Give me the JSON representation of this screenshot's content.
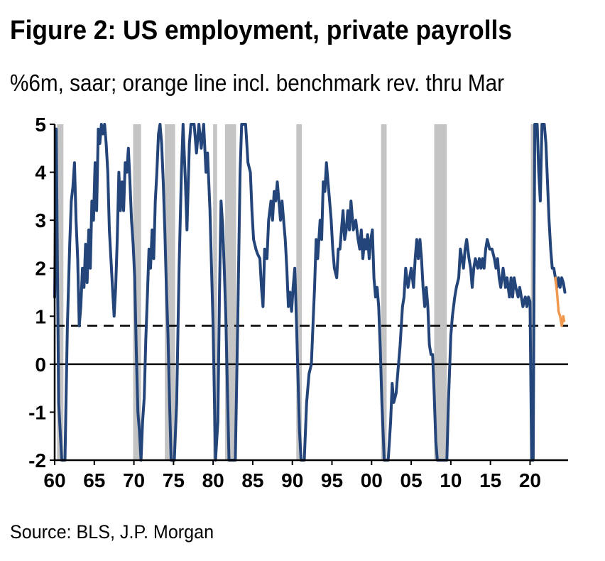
{
  "title": "Figure 2: US employment, private payrolls",
  "subtitle": "%6m, saar; orange line incl. benchmark rev. thru Mar",
  "source": "Source: BLS, J.P. Morgan",
  "colors": {
    "main_line": "#23457a",
    "revised_line": "#f0994e",
    "recession": "#c4c4c4",
    "axis": "#000000"
  },
  "chart_data": {
    "type": "line",
    "title": "Figure 2: US employment, private payrolls",
    "subtitle": "%6m, saar; orange line incl. benchmark rev. thru Mar",
    "xlabel": "",
    "ylabel": "",
    "xlim": [
      1960,
      2024.8
    ],
    "ylim": [
      -2,
      5
    ],
    "x_ticks": [
      1960,
      1965,
      1970,
      1975,
      1980,
      1985,
      1990,
      1995,
      2000,
      2005,
      2010,
      2015,
      2020
    ],
    "x_tick_labels": [
      "60",
      "65",
      "70",
      "75",
      "80",
      "85",
      "90",
      "95",
      "00",
      "05",
      "10",
      "15",
      "20"
    ],
    "y_ticks": [
      -2,
      -1,
      0,
      1,
      2,
      3,
      4,
      5
    ],
    "y_tick_labels": [
      "-2",
      "-1",
      "0",
      "1",
      "2",
      "3",
      "4",
      "5"
    ],
    "grid": false,
    "recessions": [
      [
        1960.3,
        1961.1
      ],
      [
        1969.9,
        1970.9
      ],
      [
        1973.9,
        1975.2
      ],
      [
        1980.0,
        1980.5
      ],
      [
        1981.5,
        1982.9
      ],
      [
        1990.5,
        1991.2
      ],
      [
        2001.2,
        2001.9
      ],
      [
        2007.9,
        2009.5
      ],
      [
        2020.1,
        2020.4
      ]
    ],
    "reference_line": {
      "y": 0.8,
      "style": "dashed"
    },
    "zero_line": {
      "y": 0
    },
    "series": [
      {
        "style": "solid",
        "color": "#23457a",
        "points": [
          [
            1960.0,
            1.4
          ],
          [
            1960.2,
            4.9
          ],
          [
            1960.5,
            -0.8
          ],
          [
            1960.9,
            -2.0
          ],
          [
            1961.3,
            -2.0
          ],
          [
            1961.6,
            0.8
          ],
          [
            1961.9,
            2.5
          ],
          [
            1962.1,
            3.4
          ],
          [
            1962.3,
            3.7
          ],
          [
            1962.5,
            4.2
          ],
          [
            1962.7,
            3.0
          ],
          [
            1962.9,
            2.2
          ],
          [
            1963.1,
            0.8
          ],
          [
            1963.3,
            1.2
          ],
          [
            1963.5,
            2.0
          ],
          [
            1963.7,
            1.6
          ],
          [
            1963.9,
            2.5
          ],
          [
            1964.1,
            1.7
          ],
          [
            1964.3,
            2.8
          ],
          [
            1964.5,
            2.0
          ],
          [
            1964.7,
            3.4
          ],
          [
            1964.9,
            3.0
          ],
          [
            1965.1,
            4.2
          ],
          [
            1965.3,
            3.2
          ],
          [
            1965.5,
            4.9
          ],
          [
            1965.7,
            4.6
          ],
          [
            1965.9,
            5.0
          ],
          [
            1966.1,
            4.8
          ],
          [
            1966.3,
            5.0
          ],
          [
            1966.5,
            4.6
          ],
          [
            1966.7,
            4.0
          ],
          [
            1966.9,
            2.8
          ],
          [
            1967.1,
            2.2
          ],
          [
            1967.3,
            1.6
          ],
          [
            1967.5,
            1.0
          ],
          [
            1967.7,
            1.6
          ],
          [
            1967.9,
            2.6
          ],
          [
            1968.1,
            4.0
          ],
          [
            1968.3,
            3.2
          ],
          [
            1968.5,
            3.8
          ],
          [
            1968.7,
            3.2
          ],
          [
            1968.9,
            4.2
          ],
          [
            1969.1,
            4.0
          ],
          [
            1969.3,
            4.5
          ],
          [
            1969.5,
            3.8
          ],
          [
            1969.7,
            3.0
          ],
          [
            1969.9,
            2.5
          ],
          [
            1970.1,
            1.8
          ],
          [
            1970.3,
            0.3
          ],
          [
            1970.5,
            -1.0
          ],
          [
            1970.7,
            -1.4
          ],
          [
            1970.9,
            -2.0
          ],
          [
            1971.1,
            -1.2
          ],
          [
            1971.3,
            -0.7
          ],
          [
            1971.5,
            0.5
          ],
          [
            1971.7,
            1.4
          ],
          [
            1971.9,
            2.4
          ],
          [
            1972.1,
            2.0
          ],
          [
            1972.3,
            2.8
          ],
          [
            1972.5,
            2.2
          ],
          [
            1972.7,
            3.4
          ],
          [
            1972.9,
            4.0
          ],
          [
            1973.1,
            4.8
          ],
          [
            1973.3,
            5.0
          ],
          [
            1973.5,
            4.6
          ],
          [
            1973.7,
            3.8
          ],
          [
            1973.9,
            2.8
          ],
          [
            1974.1,
            1.6
          ],
          [
            1974.3,
            0.6
          ],
          [
            1974.5,
            -0.8
          ],
          [
            1974.7,
            -2.0
          ],
          [
            1975.1,
            -2.0
          ],
          [
            1975.4,
            -0.8
          ],
          [
            1975.7,
            2.0
          ],
          [
            1976.0,
            4.0
          ],
          [
            1976.2,
            5.0
          ],
          [
            1976.5,
            3.8
          ],
          [
            1976.7,
            2.8
          ],
          [
            1977.0,
            4.6
          ],
          [
            1977.2,
            5.0
          ],
          [
            1977.6,
            5.0
          ],
          [
            1977.9,
            4.4
          ],
          [
            1978.2,
            5.0
          ],
          [
            1978.5,
            4.5
          ],
          [
            1978.8,
            5.0
          ],
          [
            1979.1,
            4.0
          ],
          [
            1979.3,
            4.4
          ],
          [
            1979.6,
            3.2
          ],
          [
            1979.8,
            2.0
          ],
          [
            1980.0,
            0.8
          ],
          [
            1980.3,
            -2.0
          ],
          [
            1980.6,
            -1.2
          ],
          [
            1980.8,
            1.5
          ],
          [
            1981.0,
            3.4
          ],
          [
            1981.2,
            2.9
          ],
          [
            1981.4,
            2.0
          ],
          [
            1981.6,
            1.0
          ],
          [
            1981.8,
            -0.5
          ],
          [
            1982.0,
            -2.0
          ],
          [
            1982.8,
            -2.0
          ],
          [
            1983.1,
            0.8
          ],
          [
            1983.4,
            4.0
          ],
          [
            1983.6,
            5.0
          ],
          [
            1984.1,
            5.0
          ],
          [
            1984.4,
            4.2
          ],
          [
            1984.7,
            4.0
          ],
          [
            1984.9,
            3.2
          ],
          [
            1985.1,
            2.6
          ],
          [
            1985.4,
            2.4
          ],
          [
            1985.6,
            2.3
          ],
          [
            1985.9,
            2.2
          ],
          [
            1986.1,
            1.6
          ],
          [
            1986.3,
            1.2
          ],
          [
            1986.5,
            2.4
          ],
          [
            1986.8,
            2.2
          ],
          [
            1987.0,
            3.0
          ],
          [
            1987.3,
            3.4
          ],
          [
            1987.5,
            3.0
          ],
          [
            1987.7,
            3.6
          ],
          [
            1987.9,
            3.4
          ],
          [
            1988.1,
            3.8
          ],
          [
            1988.3,
            3.4
          ],
          [
            1988.5,
            3.0
          ],
          [
            1988.7,
            3.4
          ],
          [
            1988.9,
            3.0
          ],
          [
            1989.1,
            2.6
          ],
          [
            1989.3,
            2.0
          ],
          [
            1989.5,
            1.2
          ],
          [
            1989.7,
            1.5
          ],
          [
            1989.9,
            1.1
          ],
          [
            1990.1,
            1.6
          ],
          [
            1990.3,
            2.0
          ],
          [
            1990.5,
            1.0
          ],
          [
            1990.7,
            -0.2
          ],
          [
            1990.9,
            -1.4
          ],
          [
            1991.1,
            -2.0
          ],
          [
            1991.5,
            -2.0
          ],
          [
            1991.8,
            -0.8
          ],
          [
            1992.1,
            -0.2
          ],
          [
            1992.4,
            0.0
          ],
          [
            1992.6,
            0.8
          ],
          [
            1992.8,
            1.6
          ],
          [
            1993.0,
            2.6
          ],
          [
            1993.2,
            2.2
          ],
          [
            1993.5,
            3.0
          ],
          [
            1993.7,
            2.6
          ],
          [
            1993.9,
            3.8
          ],
          [
            1994.1,
            3.6
          ],
          [
            1994.3,
            4.2
          ],
          [
            1994.5,
            3.8
          ],
          [
            1994.7,
            3.4
          ],
          [
            1994.9,
            3.0
          ],
          [
            1995.1,
            2.4
          ],
          [
            1995.3,
            2.0
          ],
          [
            1995.6,
            1.8
          ],
          [
            1995.8,
            2.4
          ],
          [
            1996.0,
            2.4
          ],
          [
            1996.2,
            2.8
          ],
          [
            1996.4,
            3.2
          ],
          [
            1996.6,
            2.6
          ],
          [
            1996.8,
            2.8
          ],
          [
            1997.0,
            3.2
          ],
          [
            1997.2,
            2.8
          ],
          [
            1997.4,
            3.4
          ],
          [
            1997.7,
            2.8
          ],
          [
            1998.0,
            3.0
          ],
          [
            1998.3,
            2.6
          ],
          [
            1998.5,
            2.4
          ],
          [
            1998.7,
            2.8
          ],
          [
            1998.9,
            2.2
          ],
          [
            1999.1,
            2.6
          ],
          [
            1999.3,
            2.4
          ],
          [
            1999.5,
            2.7
          ],
          [
            1999.7,
            2.2
          ],
          [
            1999.9,
            2.6
          ],
          [
            2000.1,
            2.8
          ],
          [
            2000.3,
            1.8
          ],
          [
            2000.5,
            1.4
          ],
          [
            2000.7,
            1.6
          ],
          [
            2000.9,
            1.2
          ],
          [
            2001.1,
            0.3
          ],
          [
            2001.3,
            -0.8
          ],
          [
            2001.6,
            -2.0
          ],
          [
            2002.1,
            -2.0
          ],
          [
            2002.4,
            -1.2
          ],
          [
            2002.6,
            -0.4
          ],
          [
            2002.8,
            -0.8
          ],
          [
            2003.1,
            -0.6
          ],
          [
            2003.3,
            -0.2
          ],
          [
            2003.6,
            0.4
          ],
          [
            2003.9,
            1.2
          ],
          [
            2004.1,
            1.4
          ],
          [
            2004.3,
            2.0
          ],
          [
            2004.6,
            1.6
          ],
          [
            2004.8,
            1.8
          ],
          [
            2005.0,
            2.0
          ],
          [
            2005.3,
            1.6
          ],
          [
            2005.5,
            2.2
          ],
          [
            2005.7,
            2.6
          ],
          [
            2005.9,
            2.2
          ],
          [
            2006.1,
            2.6
          ],
          [
            2006.3,
            2.2
          ],
          [
            2006.5,
            1.6
          ],
          [
            2006.7,
            1.2
          ],
          [
            2006.9,
            1.6
          ],
          [
            2007.1,
            1.2
          ],
          [
            2007.3,
            0.4
          ],
          [
            2007.5,
            0.2
          ],
          [
            2007.7,
            0.2
          ],
          [
            2007.9,
            -0.6
          ],
          [
            2008.1,
            -1.6
          ],
          [
            2008.3,
            -2.0
          ],
          [
            2009.5,
            -2.0
          ],
          [
            2009.7,
            -0.8
          ],
          [
            2010.0,
            0.6
          ],
          [
            2010.2,
            1.0
          ],
          [
            2010.5,
            1.4
          ],
          [
            2010.7,
            1.6
          ],
          [
            2011.0,
            1.8
          ],
          [
            2011.2,
            2.4
          ],
          [
            2011.4,
            2.2
          ],
          [
            2011.6,
            2.0
          ],
          [
            2011.8,
            2.4
          ],
          [
            2012.0,
            2.6
          ],
          [
            2012.3,
            2.2
          ],
          [
            2012.5,
            2.0
          ],
          [
            2012.7,
            1.6
          ],
          [
            2012.9,
            2.0
          ],
          [
            2013.1,
            2.2
          ],
          [
            2013.4,
            2.0
          ],
          [
            2013.6,
            2.2
          ],
          [
            2013.8,
            2.0
          ],
          [
            2014.0,
            2.2
          ],
          [
            2014.2,
            2.0
          ],
          [
            2014.4,
            2.4
          ],
          [
            2014.6,
            2.6
          ],
          [
            2014.9,
            2.4
          ],
          [
            2015.2,
            2.4
          ],
          [
            2015.5,
            2.2
          ],
          [
            2015.7,
            2.0
          ],
          [
            2015.9,
            2.2
          ],
          [
            2016.1,
            1.8
          ],
          [
            2016.3,
            1.6
          ],
          [
            2016.6,
            2.0
          ],
          [
            2016.9,
            1.6
          ],
          [
            2017.1,
            1.8
          ],
          [
            2017.4,
            1.4
          ],
          [
            2017.6,
            1.8
          ],
          [
            2017.8,
            1.4
          ],
          [
            2018.0,
            1.8
          ],
          [
            2018.2,
            1.6
          ],
          [
            2018.5,
            1.4
          ],
          [
            2018.7,
            1.6
          ],
          [
            2018.9,
            1.4
          ],
          [
            2019.1,
            1.2
          ],
          [
            2019.4,
            1.4
          ],
          [
            2019.6,
            1.2
          ],
          [
            2019.8,
            1.4
          ],
          [
            2020.0,
            1.3
          ],
          [
            2020.2,
            -2.0
          ],
          [
            2020.4,
            -2.0
          ],
          [
            2020.6,
            5.0
          ],
          [
            2020.9,
            5.0
          ],
          [
            2021.1,
            4.0
          ],
          [
            2021.3,
            3.4
          ],
          [
            2021.5,
            5.0
          ],
          [
            2021.8,
            5.0
          ],
          [
            2022.0,
            4.6
          ],
          [
            2022.2,
            3.8
          ],
          [
            2022.4,
            3.0
          ],
          [
            2022.6,
            2.4
          ],
          [
            2022.8,
            2.0
          ],
          [
            2023.0,
            2.0
          ],
          [
            2023.2,
            1.8
          ],
          [
            2023.4,
            1.6
          ],
          [
            2023.6,
            1.8
          ],
          [
            2023.8,
            1.6
          ],
          [
            2024.0,
            1.8
          ],
          [
            2024.2,
            1.7
          ],
          [
            2024.4,
            1.5
          ]
        ]
      },
      {
        "style": "solid",
        "color": "#f0994e",
        "points": [
          [
            2023.2,
            1.8
          ],
          [
            2023.4,
            1.5
          ],
          [
            2023.6,
            1.1
          ],
          [
            2023.8,
            1.0
          ],
          [
            2024.0,
            0.8
          ],
          [
            2024.2,
            1.0
          ],
          [
            2024.3,
            0.9
          ]
        ]
      }
    ]
  }
}
